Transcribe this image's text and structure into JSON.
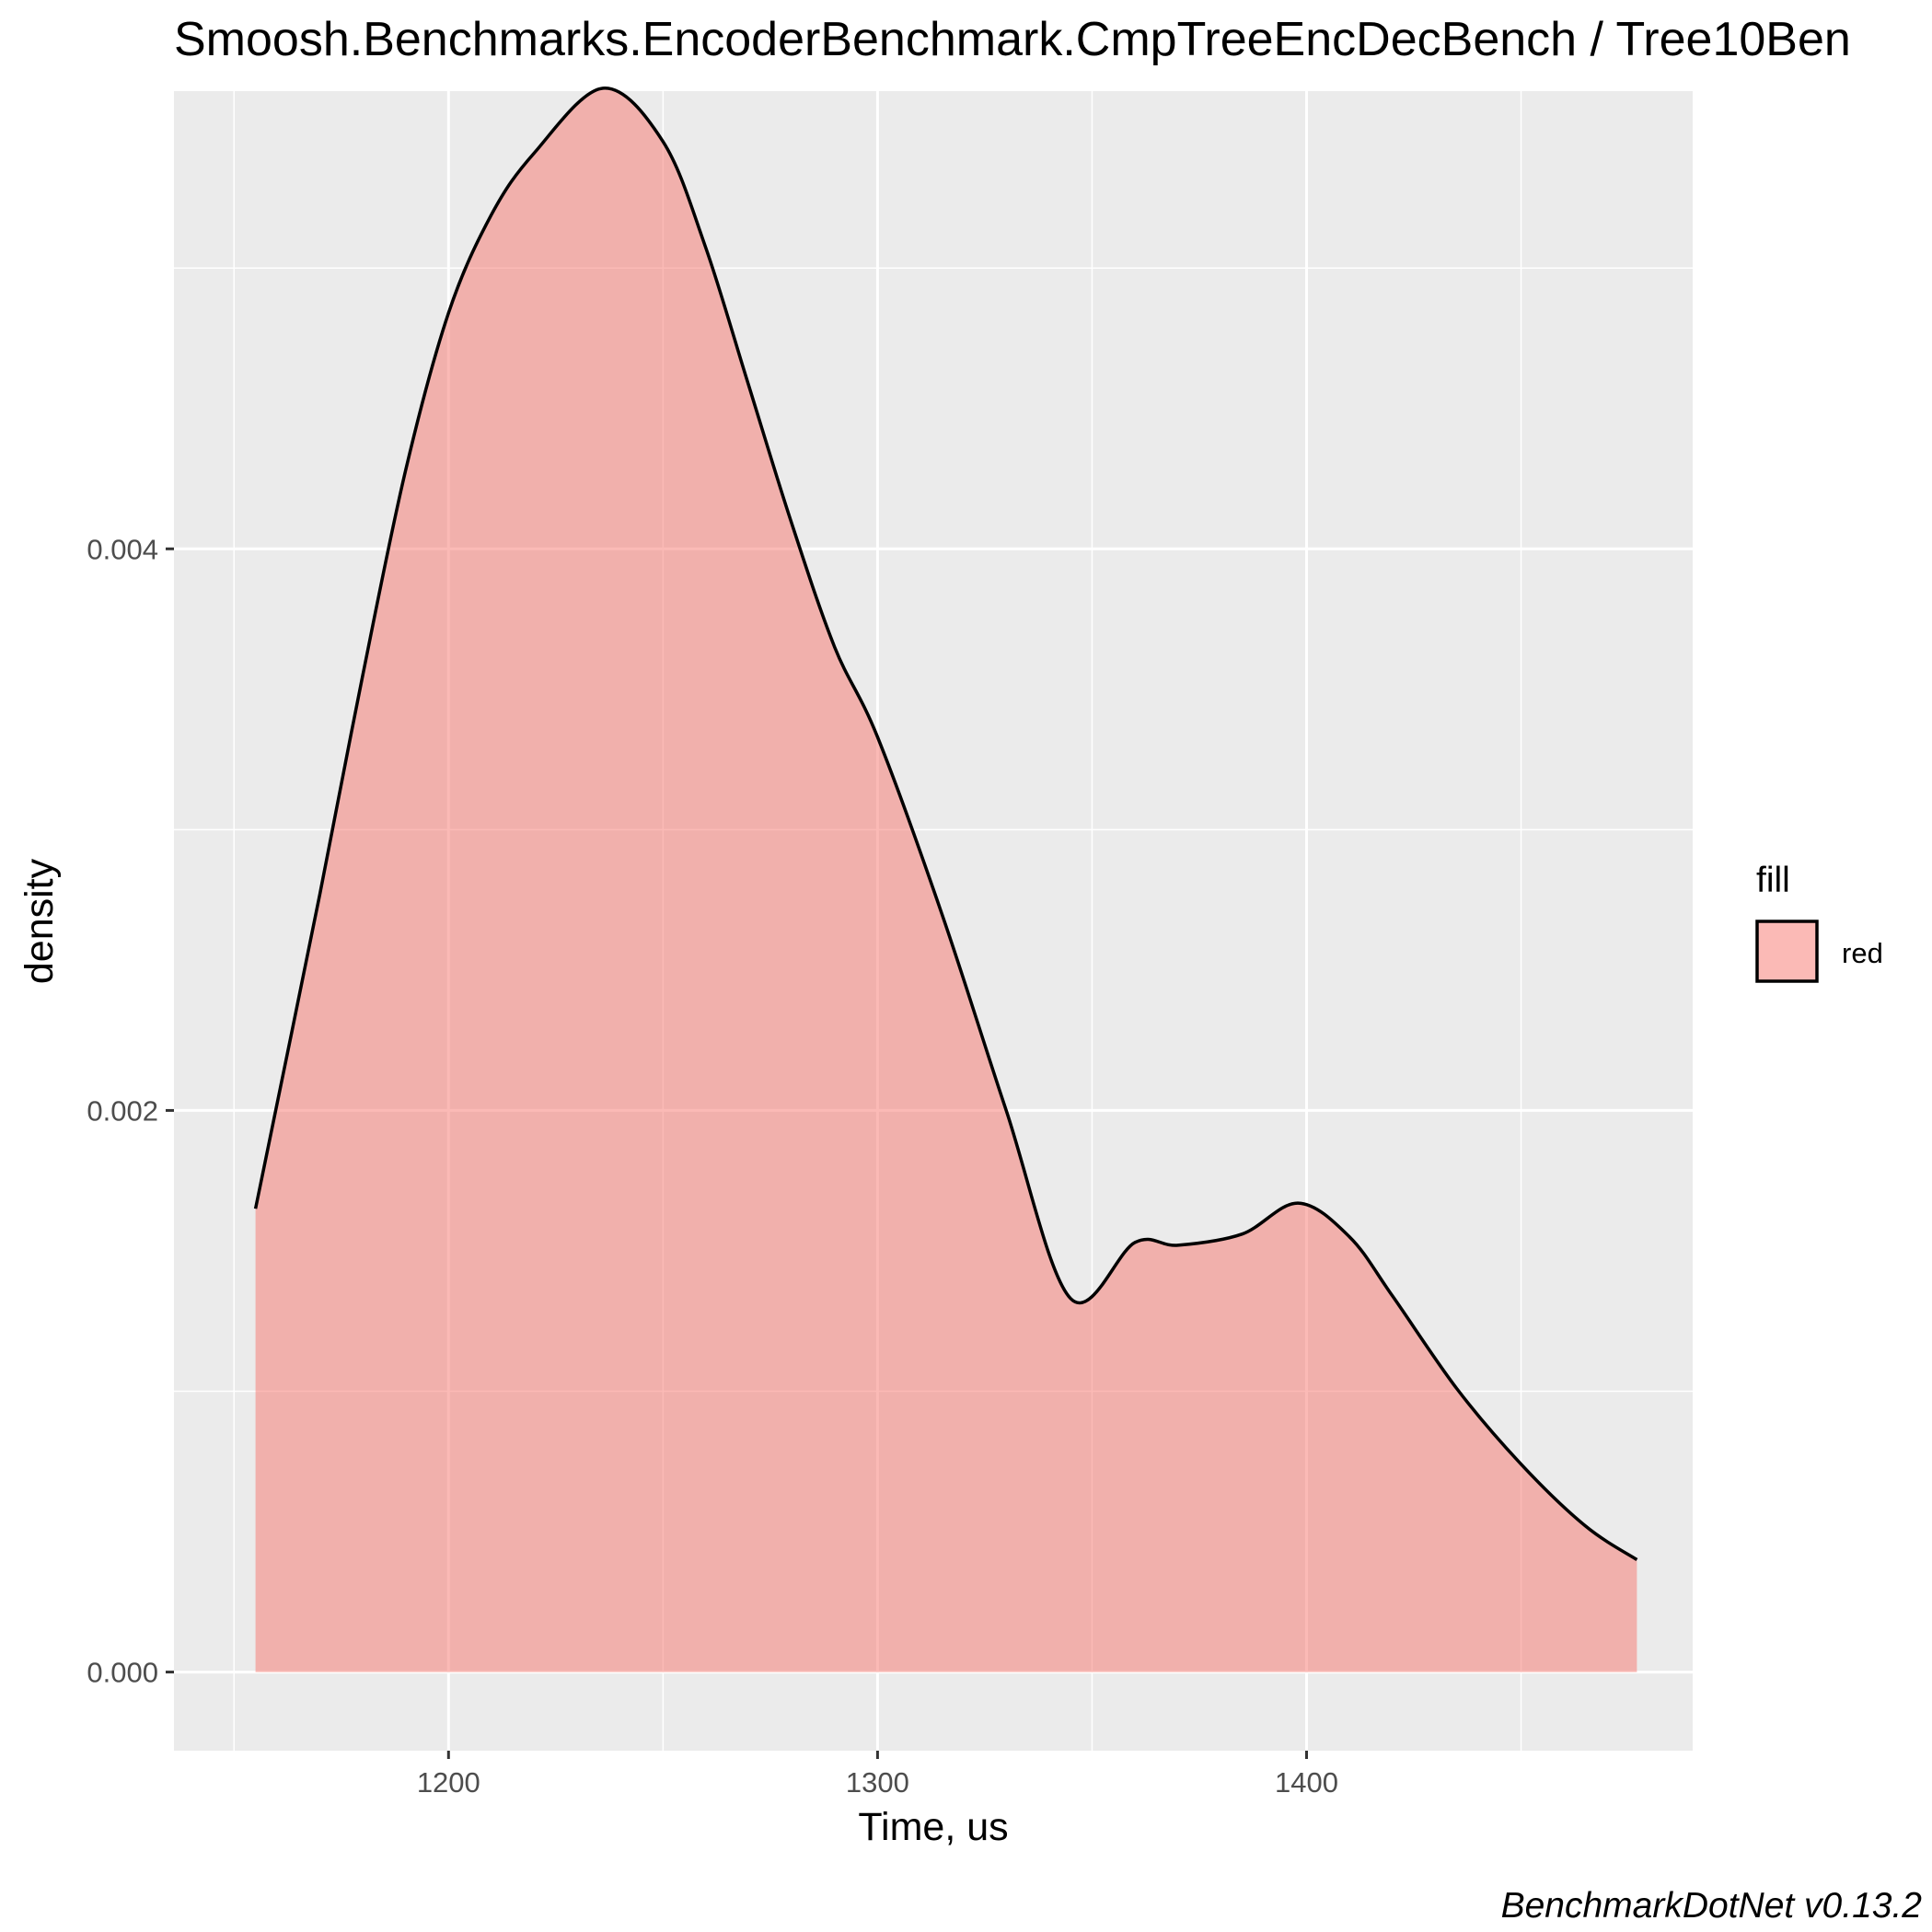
{
  "chart_data": {
    "type": "area",
    "title": "Smoosh.Benchmarks.EncoderBenchmark.CmpTreeEncDecBench / Tree10Ben",
    "xlabel": "Time, us",
    "ylabel": "density",
    "caption": "BenchmarkDotNet v0.13.2",
    "xlim": [
      1136,
      1490
    ],
    "ylim": [
      -0.00028,
      0.00563
    ],
    "x_ticks": [
      1200,
      1300,
      1400
    ],
    "x_tick_labels": [
      "1200",
      "1300",
      "1400"
    ],
    "y_ticks": [
      0.0,
      0.002,
      0.004
    ],
    "y_tick_labels": [
      "0.000",
      "0.002",
      "0.004"
    ],
    "grid": true,
    "legend": {
      "position": "right",
      "title": "fill",
      "entries": [
        {
          "label": "red",
          "color": "#F8766D"
        }
      ]
    },
    "series": [
      {
        "name": "red",
        "fill_color": "#F8766D",
        "fill_opacity": 0.5,
        "line_color": "#000000",
        "x": [
          1155,
          1170,
          1180,
          1190,
          1200,
          1210,
          1220,
          1236,
          1250,
          1260,
          1270,
          1280,
          1290,
          1300,
          1315,
          1330,
          1345,
          1360,
          1370,
          1385,
          1398,
          1410,
          1420,
          1435,
          1450,
          1465,
          1477
        ],
        "y": [
          0.00165,
          0.00277,
          0.00355,
          0.00428,
          0.00484,
          0.00519,
          0.00541,
          0.00564,
          0.00545,
          0.00507,
          0.00458,
          0.00409,
          0.00365,
          0.00333,
          0.0027,
          0.002,
          0.00133,
          0.00153,
          0.00152,
          0.00156,
          0.00167,
          0.00155,
          0.00134,
          0.00101,
          0.00074,
          0.00052,
          0.0004
        ]
      }
    ]
  }
}
